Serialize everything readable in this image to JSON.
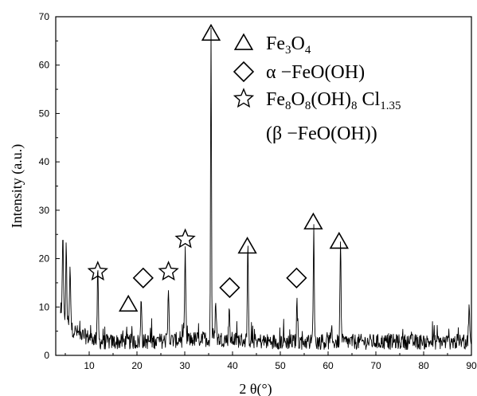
{
  "chart_data": {
    "type": "line",
    "xlabel": "2 θ(°)",
    "ylabel": "Intensity (a.u.)",
    "xlim": [
      3,
      90
    ],
    "ylim": [
      0,
      70
    ],
    "x_ticks": [
      10,
      20,
      30,
      40,
      50,
      60,
      70,
      80,
      90
    ],
    "y_ticks": [
      0,
      10,
      20,
      30,
      40,
      50,
      60,
      70
    ],
    "grid": false,
    "legend_placement": "top-right",
    "series": [
      {
        "color": "#000000",
        "peaks": [
          {
            "x": 4.5,
            "y": 18.5
          },
          {
            "x": 5.2,
            "y": 16
          },
          {
            "x": 6.0,
            "y": 12
          },
          {
            "x": 11.8,
            "y": 14
          },
          {
            "x": 20.9,
            "y": 9
          },
          {
            "x": 26.6,
            "y": 11
          },
          {
            "x": 30.1,
            "y": 18
          },
          {
            "x": 35.5,
            "y": 65
          },
          {
            "x": 36.5,
            "y": 8
          },
          {
            "x": 39.3,
            "y": 6
          },
          {
            "x": 43.2,
            "y": 17
          },
          {
            "x": 53.5,
            "y": 8
          },
          {
            "x": 57.0,
            "y": 23
          },
          {
            "x": 62.6,
            "y": 20
          },
          {
            "x": 89.5,
            "y": 7
          }
        ]
      }
    ],
    "markers": [
      {
        "shape": "triangle",
        "x": 18.2,
        "y": 10.5
      },
      {
        "shape": "triangle",
        "x": 35.5,
        "y": 66.5
      },
      {
        "shape": "triangle",
        "x": 43.1,
        "y": 22.5
      },
      {
        "shape": "triangle",
        "x": 56.9,
        "y": 27.5
      },
      {
        "shape": "triangle",
        "x": 62.3,
        "y": 23.5
      },
      {
        "shape": "diamond",
        "x": 21.3,
        "y": 16
      },
      {
        "shape": "diamond",
        "x": 39.4,
        "y": 14
      },
      {
        "shape": "diamond",
        "x": 53.4,
        "y": 16
      },
      {
        "shape": "star",
        "x": 11.8,
        "y": 17.3
      },
      {
        "shape": "star",
        "x": 26.6,
        "y": 17.3
      },
      {
        "shape": "star",
        "x": 30.1,
        "y": 24
      }
    ],
    "legend": [
      {
        "shape": "triangle",
        "label": "Fe",
        "sub1": "3",
        "mid": "O",
        "sub2": "4",
        "tail": ""
      },
      {
        "shape": "diamond",
        "label": "α −FeO(OH)",
        "sub1": "",
        "mid": "",
        "sub2": "",
        "tail": ""
      },
      {
        "shape": "star",
        "label": "Fe",
        "sub1": "8",
        "mid": "O",
        "sub2": "8",
        "tail": "(OH)",
        "sub3": "8",
        "tail2": " Cl",
        "sub4": "1.35"
      },
      {
        "shape": "none",
        "label": "(β −FeO(OH))"
      }
    ]
  }
}
